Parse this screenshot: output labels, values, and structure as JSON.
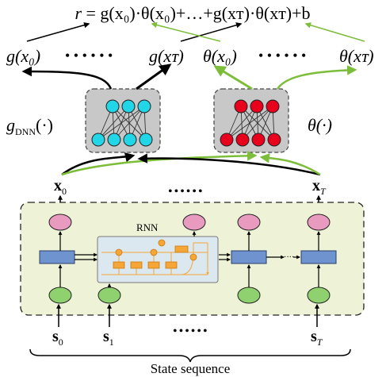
{
  "equation": {
    "lhs": "r",
    "rhs": "= g(x₀)·θ(x₀)+…+g(xᴛ)·θ(xᴛ)+b"
  },
  "outputs": {
    "g0": "g(x₀)",
    "gT": "g(xᴛ)",
    "theta0": "θ(x₀)",
    "thetaT": "θ(xᴛ)",
    "dots": "• • • • • •"
  },
  "networks": {
    "g_label": "g",
    "g_label_sub": "DNN",
    "g_label_suffix": "(·)",
    "theta_label": "θ(·)",
    "g_color": "#21d6e6",
    "theta_color": "#e8001c"
  },
  "features": {
    "x0": "x",
    "x0_sub": "0",
    "xT": "x",
    "xT_sub": "T",
    "dots": "••••••"
  },
  "rnn": {
    "label": "RNN",
    "hidden_dots": "····",
    "background": "#eef3d8",
    "inner_background": "#dce8f0",
    "cell_color": "#6f93cf",
    "output_color": "#e89bbf",
    "input_color": "#8fd16e",
    "gate_color": "#f5a636"
  },
  "states": {
    "s0": "s",
    "s0_sub": "0",
    "s1": "s",
    "s1_sub": "1",
    "sT": "s",
    "sT_sub": "T",
    "dots": "••••••"
  },
  "brace_label": "State sequence",
  "arrow_colors": {
    "black": "#000000",
    "green": "#7cbd3a"
  }
}
